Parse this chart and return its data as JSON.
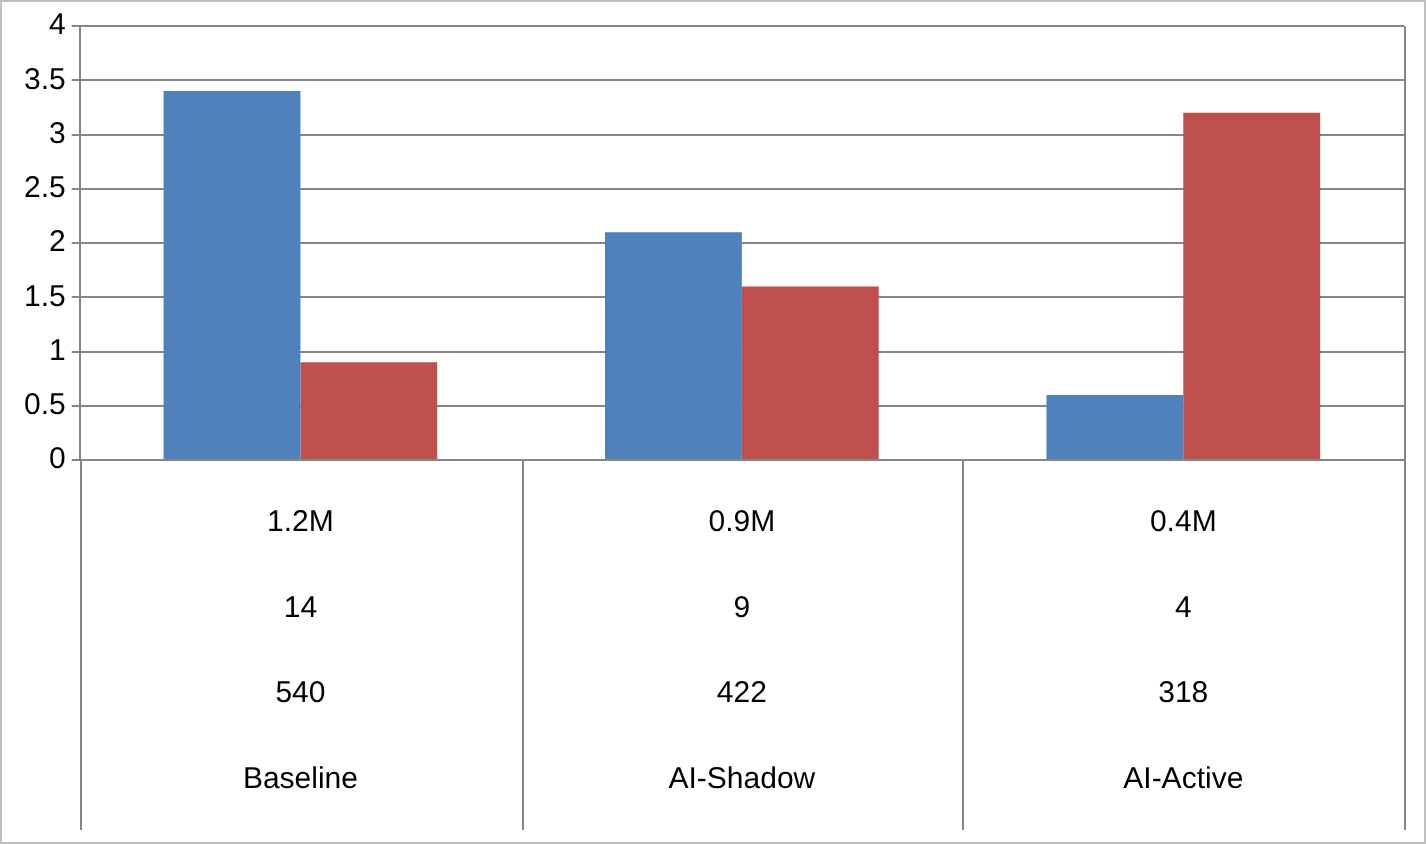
{
  "chart_data": {
    "type": "bar",
    "categories": [
      "1.2M\n14\n540\nBaseline",
      "0.9M\n9\n422\nAI-Shadow",
      "0.4M\n4\n318\nAI-Active"
    ],
    "series": [
      {
        "color": "#4f81bd",
        "values": [
          3.4,
          2.1,
          0.6
        ]
      },
      {
        "color": "#c0504d",
        "values": [
          0.9,
          1.6,
          3.2
        ]
      }
    ],
    "ylim": [
      0,
      4
    ],
    "yticks": [
      0,
      0.5,
      1,
      1.5,
      2,
      2.5,
      3,
      3.5,
      4
    ],
    "grid": "y",
    "legend": false
  }
}
